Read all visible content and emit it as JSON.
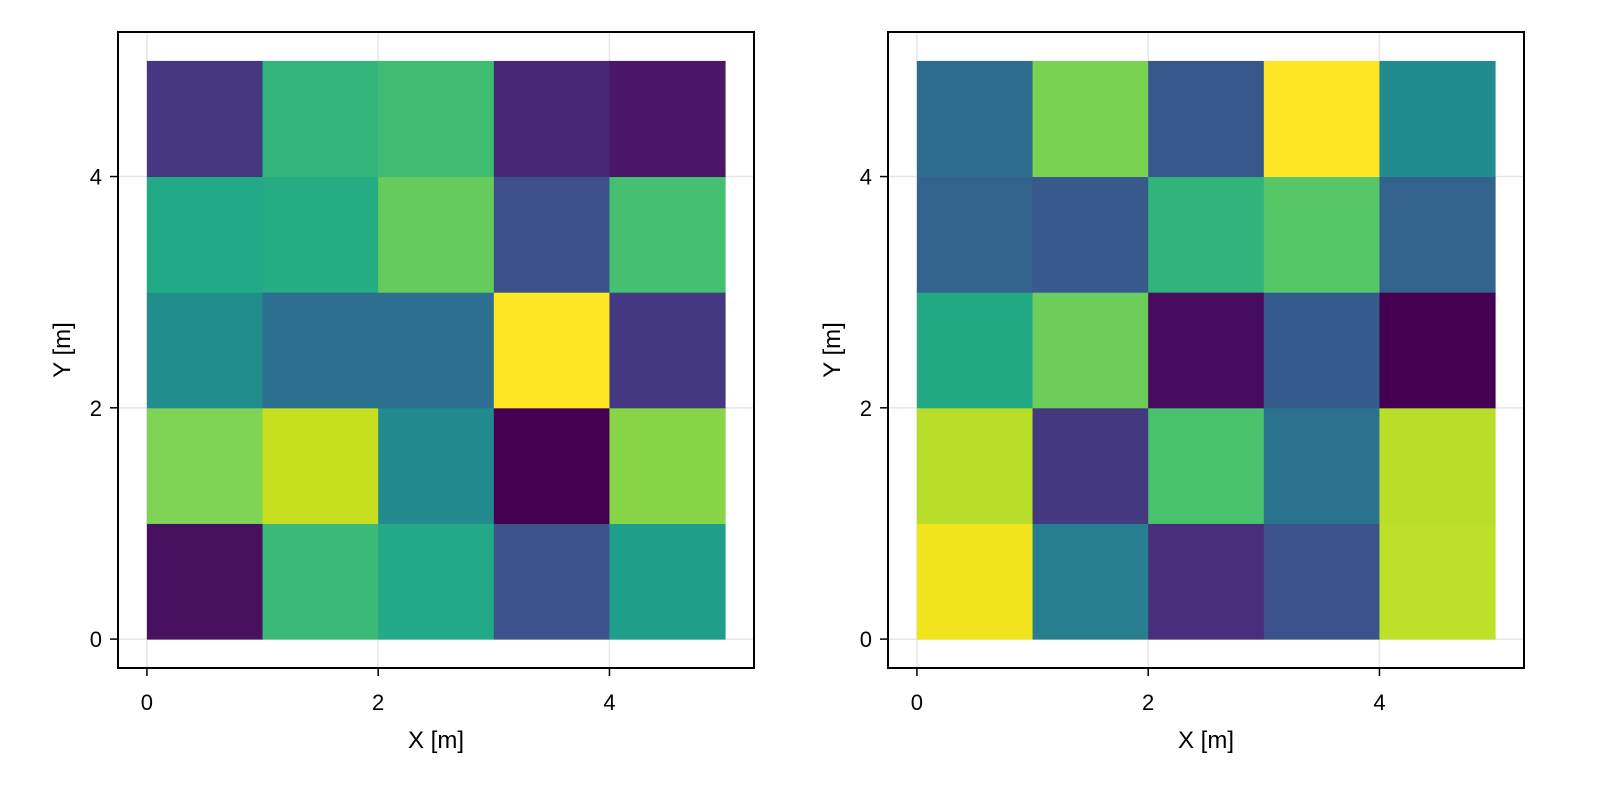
{
  "chart_data": [
    {
      "type": "heatmap",
      "title": "",
      "xlabel": "X [m]",
      "ylabel": "Y [m]",
      "xlim": [
        -0.25,
        5.25
      ],
      "ylim": [
        -0.25,
        5.25
      ],
      "xticks": [
        0,
        2,
        4
      ],
      "yticks": [
        0,
        2,
        4
      ],
      "grid": true,
      "colormap": "viridis",
      "x_edges": [
        0,
        1,
        2,
        3,
        4,
        5
      ],
      "y_edges": [
        0,
        1,
        2,
        3,
        4,
        5
      ],
      "colors": [
        [
          "#471160",
          "#3bb977",
          "#22a986",
          "#3c548b",
          "#1f9e8b"
        ],
        [
          "#7fd455",
          "#c6e020",
          "#238a8d",
          "#440154",
          "#89d548"
        ],
        [
          "#228d8d",
          "#2d6f8e",
          "#2d6f8e",
          "#fde725",
          "#453883"
        ],
        [
          "#22a986",
          "#25ac82",
          "#65cc5b",
          "#3e508a",
          "#45bf71"
        ],
        [
          "#453781",
          "#31b57b",
          "#3fbd73",
          "#472876",
          "#4a1767"
        ]
      ]
    },
    {
      "type": "heatmap",
      "title": "",
      "xlabel": "X [m]",
      "ylabel": "Y [m]",
      "xlim": [
        -0.25,
        5.25
      ],
      "ylim": [
        -0.25,
        5.25
      ],
      "xticks": [
        0,
        2,
        4
      ],
      "yticks": [
        0,
        2,
        4
      ],
      "grid": true,
      "colormap": "viridis",
      "x_edges": [
        0,
        1,
        2,
        3,
        4,
        5
      ],
      "y_edges": [
        0,
        1,
        2,
        3,
        4,
        5
      ],
      "colors": [
        [
          "#f0e51d",
          "#277e8e",
          "#472f7d",
          "#3b538b",
          "#bee028"
        ],
        [
          "#b8de29",
          "#443881",
          "#49c16d",
          "#2b728e",
          "#b8de29"
        ],
        [
          "#23a884",
          "#6ccd5a",
          "#470b5f",
          "#345d8d",
          "#440154"
        ],
        [
          "#33628d",
          "#38598c",
          "#30b47c",
          "#56c667",
          "#33628d"
        ],
        [
          "#2e6c8e",
          "#7ad251",
          "#38588c",
          "#fde725",
          "#228b8d"
        ]
      ]
    }
  ]
}
